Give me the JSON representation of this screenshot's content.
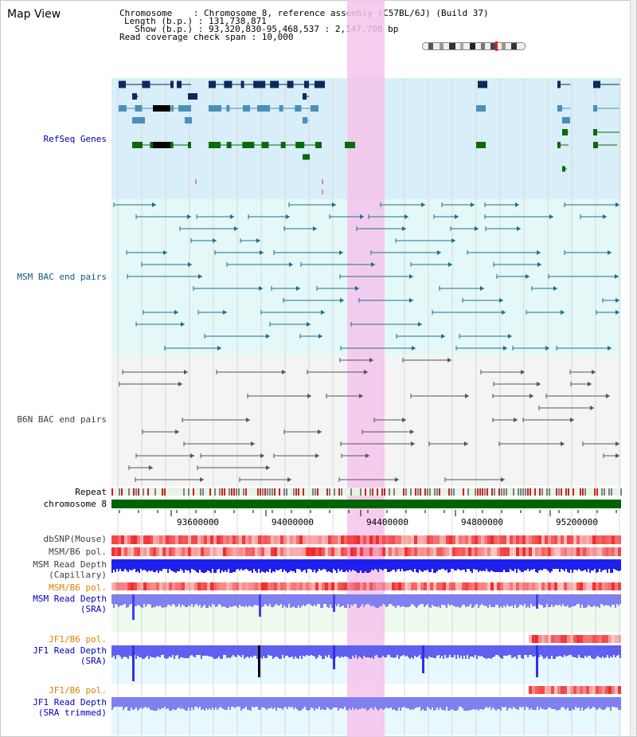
{
  "map_view_label": "Map View",
  "header": {
    "chromosome_line": "Chromosome    : Chromosome 8, reference assembly (C57BL/6J) (Build 37)",
    "length_line": "Length (b.p.) : 131,738,871",
    "show_line": "  Show (b.p.) : 93,320,830-95,468,537 : 2,147,708 bp",
    "coverage_line": "Read coverage check span : 10,000"
  },
  "tracks": {
    "refseq": "RefSeq Genes",
    "msm_bac": "MSM BAC end pairs",
    "b6n_bac": "B6N BAC end pairs",
    "repeat": "Repeat",
    "chromosome": "chromosome 8",
    "dbsnp": "dbSNP(Mouse)",
    "msm_b6_pol_1": "MSM/B6 pol.",
    "msm_depth_cap": "MSM Read Depth\n(Capillary)",
    "msm_b6_pol_2": "MSM/B6 pol.",
    "msm_depth_sra": "MSM Read Depth\n(SRA)",
    "jf1_b6_pol_1": "JF1/B6 pol.",
    "jf1_depth_sra": "JF1 Read Depth\n(SRA)",
    "jf1_b6_pol_2": "JF1/B6 pol.",
    "jf1_depth_trim": "JF1 Read Depth\n(SRA trimmed)"
  },
  "axis_ticks": [
    "93600000",
    "94000000",
    "94400000",
    "94800000",
    "95200000"
  ],
  "colors": {
    "refseq_dark": "#0a2a5c",
    "refseq_mid": "#4a90b8",
    "refseq_green": "#0a6a0a",
    "msm_bac": "#1a6f8f",
    "b6n_bac": "#555555",
    "highlight": "#f4c4ec",
    "depth_blue": "#3030ff",
    "pol_red": "#ff3030"
  }
}
